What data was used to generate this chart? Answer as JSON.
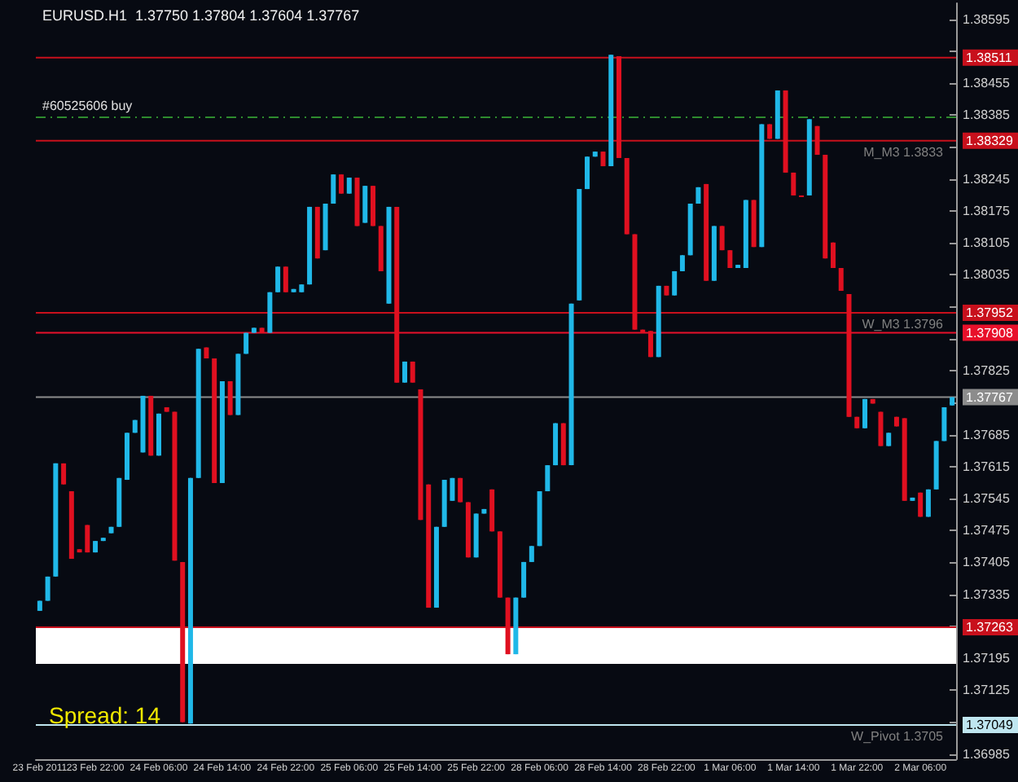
{
  "chart_data": {
    "type": "candlestick",
    "title": "EURUSD.H1  1.37750 1.37804 1.37604 1.37767",
    "annotations": [
      "Spread: 14",
      {
        "text": "M_M3 1.3833",
        "y": 1.38329
      },
      {
        "text": "W_M3 1.3796",
        "y": 1.37952
      },
      {
        "text": "W_Pivot 1.3705",
        "y": 1.37049
      }
    ],
    "categories": [
      "23 Feb 2011",
      null,
      null,
      null,
      null,
      null,
      null,
      "23 Feb 22:00",
      null,
      null,
      null,
      null,
      null,
      null,
      null,
      "24 Feb 06:00",
      null,
      null,
      null,
      null,
      null,
      null,
      null,
      "24 Feb 14:00",
      null,
      null,
      null,
      null,
      null,
      null,
      null,
      "24 Feb 22:00",
      null,
      null,
      null,
      null,
      null,
      null,
      null,
      "25 Feb 06:00",
      null,
      null,
      null,
      null,
      null,
      null,
      null,
      "25 Feb 14:00",
      null,
      null,
      null,
      null,
      null,
      null,
      null,
      "25 Feb 22:00",
      null,
      null,
      null,
      null,
      null,
      null,
      null,
      "28 Feb 06:00",
      null,
      null,
      null,
      null,
      null,
      null,
      null,
      "28 Feb 14:00",
      null,
      null,
      null,
      null,
      null,
      null,
      null,
      "28 Feb 22:00",
      null,
      null,
      null,
      null,
      null,
      null,
      null,
      "1 Mar 06:00",
      null,
      null,
      null,
      null,
      null,
      null,
      null,
      "1 Mar 14:00",
      null,
      null,
      null,
      null,
      null,
      null,
      null,
      "1 Mar 22:00",
      null,
      null,
      null,
      null,
      null,
      null,
      null,
      "2 Mar 06:00",
      null,
      null,
      null,
      null
    ],
    "ohlc": [
      [
        1.37299,
        1.37321,
        1.37299,
        1.37321
      ],
      [
        1.37321,
        1.37374,
        1.37321,
        1.37374
      ],
      [
        1.37374,
        1.37622,
        1.37374,
        1.37622
      ],
      [
        1.37622,
        1.37622,
        1.37576,
        1.37576
      ],
      [
        1.37561,
        1.37561,
        1.37413,
        1.37413
      ],
      [
        1.37434,
        1.37434,
        1.37427,
        1.37427
      ],
      [
        1.37487,
        1.37487,
        1.37427,
        1.37427
      ],
      [
        1.37427,
        1.37452,
        1.37427,
        1.37452
      ],
      [
        1.37452,
        1.37459,
        1.37452,
        1.37459
      ],
      [
        1.37469,
        1.37483,
        1.37469,
        1.37483
      ],
      [
        1.37483,
        1.3759,
        1.37483,
        1.3759
      ],
      [
        1.37586,
        1.37689,
        1.37586,
        1.37689
      ],
      [
        1.37689,
        1.37717,
        1.37689,
        1.37717
      ],
      [
        1.37646,
        1.3777,
        1.37646,
        1.3777
      ],
      [
        1.3777,
        1.3777,
        1.37639,
        1.37639
      ],
      [
        1.37639,
        1.37731,
        1.37639,
        1.37731
      ],
      [
        1.37745,
        1.37745,
        1.37735,
        1.37735
      ],
      [
        1.37735,
        1.37735,
        1.37409,
        1.37409
      ],
      [
        1.37406,
        1.37406,
        1.37055,
        1.37055
      ],
      [
        1.37052,
        1.3759,
        1.37052,
        1.3759
      ],
      [
        1.3759,
        1.37873,
        1.3759,
        1.37873
      ],
      [
        1.37876,
        1.37876,
        1.37852,
        1.37852
      ],
      [
        1.37852,
        1.37852,
        1.37579,
        1.37579
      ],
      [
        1.37579,
        1.37802,
        1.37579,
        1.37802
      ],
      [
        1.37802,
        1.37802,
        1.37728,
        1.37728
      ],
      [
        1.37728,
        1.37862,
        1.37728,
        1.37862
      ],
      [
        1.37862,
        1.37908,
        1.37862,
        1.37908
      ],
      [
        1.37908,
        1.37919,
        1.37908,
        1.37919
      ],
      [
        1.37919,
        1.37919,
        1.37908,
        1.37908
      ],
      [
        1.37908,
        1.37997,
        1.37908,
        1.37997
      ],
      [
        1.37997,
        1.38053,
        1.37997,
        1.38053
      ],
      [
        1.38053,
        1.38053,
        1.37997,
        1.37997
      ],
      [
        1.37997,
        1.38004,
        1.37997,
        1.38004
      ],
      [
        1.37997,
        1.38014,
        1.37997,
        1.38014
      ],
      [
        1.38014,
        1.38184,
        1.38014,
        1.38184
      ],
      [
        1.38184,
        1.38184,
        1.38071,
        1.38071
      ],
      [
        1.38089,
        1.38191,
        1.38089,
        1.38191
      ],
      [
        1.38191,
        1.38255,
        1.38191,
        1.38255
      ],
      [
        1.38255,
        1.38255,
        1.38213,
        1.38213
      ],
      [
        1.38213,
        1.38248,
        1.38213,
        1.38248
      ],
      [
        1.38248,
        1.38248,
        1.38142,
        1.38142
      ],
      [
        1.38149,
        1.3823,
        1.38149,
        1.3823
      ],
      [
        1.3823,
        1.3823,
        1.38142,
        1.38142
      ],
      [
        1.38142,
        1.38142,
        1.38043,
        1.38043
      ],
      [
        1.37972,
        1.38184,
        1.37972,
        1.38184
      ],
      [
        1.38184,
        1.38184,
        1.37799,
        1.37799
      ],
      [
        1.37799,
        1.37845,
        1.37799,
        1.37845
      ],
      [
        1.37845,
        1.37845,
        1.37799,
        1.37799
      ],
      [
        1.37784,
        1.37784,
        1.37498,
        1.37498
      ],
      [
        1.37576,
        1.37576,
        1.37306,
        1.37306
      ],
      [
        1.37306,
        1.37483,
        1.37306,
        1.37483
      ],
      [
        1.37483,
        1.37586,
        1.37483,
        1.37586
      ],
      [
        1.3754,
        1.3759,
        1.3754,
        1.3759
      ],
      [
        1.3759,
        1.3759,
        1.37537,
        1.37537
      ],
      [
        1.37537,
        1.37537,
        1.37416,
        1.37416
      ],
      [
        1.37416,
        1.37512,
        1.37416,
        1.37512
      ],
      [
        1.37512,
        1.37522,
        1.37512,
        1.37522
      ],
      [
        1.37565,
        1.37565,
        1.37473,
        1.37473
      ],
      [
        1.37473,
        1.37473,
        1.37328,
        1.37328
      ],
      [
        1.37328,
        1.37328,
        1.37204,
        1.37204
      ],
      [
        1.37204,
        1.37328,
        1.37204,
        1.37328
      ],
      [
        1.37328,
        1.37406,
        1.37328,
        1.37406
      ],
      [
        1.37406,
        1.37441,
        1.37406,
        1.37441
      ],
      [
        1.37441,
        1.37561,
        1.37441,
        1.37561
      ],
      [
        1.37561,
        1.37618,
        1.37561,
        1.37618
      ],
      [
        1.37618,
        1.3771,
        1.37618,
        1.3771
      ],
      [
        1.3771,
        1.3771,
        1.37618,
        1.37618
      ],
      [
        1.37618,
        1.37972,
        1.37618,
        1.37972
      ],
      [
        1.37979,
        1.38223,
        1.37979,
        1.38223
      ],
      [
        1.38223,
        1.38294,
        1.38223,
        1.38294
      ],
      [
        1.38294,
        1.38305,
        1.38294,
        1.38305
      ],
      [
        1.38305,
        1.38305,
        1.38273,
        1.38273
      ],
      [
        1.38273,
        1.38517,
        1.38273,
        1.38517
      ],
      [
        1.38514,
        1.38514,
        1.38291,
        1.38291
      ],
      [
        1.38291,
        1.38291,
        1.38124,
        1.38124
      ],
      [
        1.38124,
        1.38124,
        1.37915,
        1.37915
      ],
      [
        1.37915,
        1.37915,
        1.37908,
        1.37908
      ],
      [
        1.37912,
        1.37912,
        1.37855,
        1.37855
      ],
      [
        1.37855,
        1.38011,
        1.37855,
        1.38011
      ],
      [
        1.38011,
        1.38011,
        1.3799,
        1.3799
      ],
      [
        1.3799,
        1.38043,
        1.3799,
        1.38043
      ],
      [
        1.38043,
        1.38078,
        1.38043,
        1.38078
      ],
      [
        1.38078,
        1.38191,
        1.38078,
        1.38191
      ],
      [
        1.38191,
        1.38227,
        1.38191,
        1.38227
      ],
      [
        1.38234,
        1.38234,
        1.38022,
        1.38022
      ],
      [
        1.38022,
        1.38142,
        1.38022,
        1.38142
      ],
      [
        1.38142,
        1.38142,
        1.38089,
        1.38089
      ],
      [
        1.38089,
        1.38089,
        1.3805,
        1.3805
      ],
      [
        1.3805,
        1.38057,
        1.3805,
        1.38057
      ],
      [
        1.3805,
        1.38199,
        1.3805,
        1.38199
      ],
      [
        1.38199,
        1.38199,
        1.38096,
        1.38096
      ],
      [
        1.38096,
        1.38365,
        1.38096,
        1.38365
      ],
      [
        1.38365,
        1.38365,
        1.38333,
        1.38333
      ],
      [
        1.38333,
        1.38439,
        1.38333,
        1.38439
      ],
      [
        1.38439,
        1.38439,
        1.38259,
        1.38259
      ],
      [
        1.38259,
        1.38259,
        1.38209,
        1.38209
      ],
      [
        1.38209,
        1.38209,
        1.38209,
        1.38209
      ],
      [
        1.38209,
        1.38376,
        1.38209,
        1.38376
      ],
      [
        1.38361,
        1.38361,
        1.38298,
        1.38298
      ],
      [
        1.38298,
        1.38298,
        1.38071,
        1.38071
      ],
      [
        1.38106,
        1.38106,
        1.3805,
        1.3805
      ],
      [
        1.3805,
        1.3805,
        1.38,
        1.38
      ],
      [
        1.37993,
        1.37993,
        1.37724,
        1.37724
      ],
      [
        1.37724,
        1.37724,
        1.37699,
        1.37699
      ],
      [
        1.37699,
        1.37763,
        1.37699,
        1.37763
      ],
      [
        1.37763,
        1.37763,
        1.37753,
        1.37753
      ],
      [
        1.37735,
        1.37735,
        1.3766,
        1.3766
      ],
      [
        1.3766,
        1.37689,
        1.3766,
        1.37689
      ],
      [
        1.37724,
        1.37724,
        1.37703,
        1.37703
      ],
      [
        1.37721,
        1.37721,
        1.3754,
        1.3754
      ],
      [
        1.3754,
        1.37547,
        1.3754,
        1.37547
      ],
      [
        1.37558,
        1.37558,
        1.37505,
        1.37505
      ],
      [
        1.37505,
        1.37565,
        1.37505,
        1.37565
      ],
      [
        1.37565,
        1.37671,
        1.37565,
        1.37671
      ],
      [
        1.37671,
        1.37745,
        1.37671,
        1.37745
      ],
      [
        1.37749,
        1.37767,
        1.37749,
        1.37767
      ]
    ],
    "colors": [
      "#20b8e8",
      "#20b8e8",
      "#20b8e8",
      "#e01020",
      "#e01020",
      "#e01020",
      "#e01020",
      "#20b8e8",
      "#20b8e8",
      "#20b8e8",
      "#20b8e8",
      "#20b8e8",
      "#20b8e8",
      "#20b8e8",
      "#e01020",
      "#20b8e8",
      "#e01020",
      "#e01020",
      "#e01020",
      "#20b8e8",
      "#20b8e8",
      "#e01020",
      "#e01020",
      "#20b8e8",
      "#e01020",
      "#20b8e8",
      "#20b8e8",
      "#20b8e8",
      "#e01020",
      "#20b8e8",
      "#20b8e8",
      "#e01020",
      "#20b8e8",
      "#20b8e8",
      "#20b8e8",
      "#e01020",
      "#20b8e8",
      "#20b8e8",
      "#e01020",
      "#20b8e8",
      "#e01020",
      "#20b8e8",
      "#e01020",
      "#e01020",
      "#20b8e8",
      "#e01020",
      "#20b8e8",
      "#e01020",
      "#e01020",
      "#e01020",
      "#20b8e8",
      "#20b8e8",
      "#20b8e8",
      "#e01020",
      "#e01020",
      "#20b8e8",
      "#20b8e8",
      "#e01020",
      "#e01020",
      "#e01020",
      "#20b8e8",
      "#20b8e8",
      "#20b8e8",
      "#20b8e8",
      "#20b8e8",
      "#20b8e8",
      "#e01020",
      "#20b8e8",
      "#20b8e8",
      "#20b8e8",
      "#20b8e8",
      "#e01020",
      "#20b8e8",
      "#e01020",
      "#e01020",
      "#e01020",
      "#e01020",
      "#e01020",
      "#20b8e8",
      "#e01020",
      "#20b8e8",
      "#20b8e8",
      "#20b8e8",
      "#20b8e8",
      "#e01020",
      "#20b8e8",
      "#e01020",
      "#e01020",
      "#20b8e8",
      "#20b8e8",
      "#e01020",
      "#20b8e8",
      "#e01020",
      "#20b8e8",
      "#e01020",
      "#e01020",
      "#e01020",
      "#20b8e8",
      "#e01020",
      "#e01020",
      "#e01020",
      "#e01020",
      "#e01020",
      "#e01020",
      "#20b8e8",
      "#e01020",
      "#e01020",
      "#20b8e8",
      "#e01020",
      "#e01020",
      "#20b8e8",
      "#e01020",
      "#20b8e8",
      "#20b8e8",
      "#20b8e8",
      "#20b8e8"
    ],
    "ylim": [
      1.36974,
      1.3863
    ],
    "yticks": [
      1.36985,
      {
        "value": 1.37055,
        "label": null
      },
      1.37125,
      1.37195,
      {
        "value": 1.37265,
        "label": null
      },
      1.37335,
      1.37405,
      1.37475,
      1.37545,
      1.37615,
      1.37685,
      {
        "value": 1.37755,
        "label": null
      },
      1.37825,
      {
        "value": 1.37895,
        "label": null
      },
      {
        "value": 1.37965,
        "label": null
      },
      1.38035,
      1.38105,
      1.38175,
      1.38245,
      {
        "value": 1.38315,
        "label": null
      },
      1.38385,
      1.38455,
      {
        "value": 1.38525,
        "label": null
      },
      1.38595
    ],
    "ref_lines": [
      {
        "axis": "y",
        "value": 1.38511,
        "label": "1.38511",
        "color": "#c8101c"
      },
      {
        "axis": "y",
        "value": 1.3838,
        "label": "#60525606 buy",
        "color": "#2e8b2e",
        "line_style": "dashed"
      },
      {
        "axis": "y",
        "value": 1.38329,
        "label": "1.38329",
        "color": "#c8101c"
      },
      {
        "axis": "y",
        "value": 1.37952,
        "label": "1.37952",
        "color": "#c8101c"
      },
      {
        "axis": "y",
        "value": 1.37908,
        "label": "1.37908",
        "color": "#e8102a"
      },
      {
        "axis": "y",
        "value": 1.37767,
        "label": "1.37767",
        "color": "#8c8c8c"
      },
      {
        "axis": "y",
        "value": 1.37263,
        "label": "1.37263",
        "color": "#c8101c"
      },
      {
        "axis": "y",
        "value": 1.37049,
        "label": "1.37049",
        "color": "#bfe6f0"
      }
    ],
    "bands": [
      {
        "axis": "y",
        "from": 1.37183,
        "to": 1.37263,
        "color": "#ffffff"
      }
    ]
  }
}
